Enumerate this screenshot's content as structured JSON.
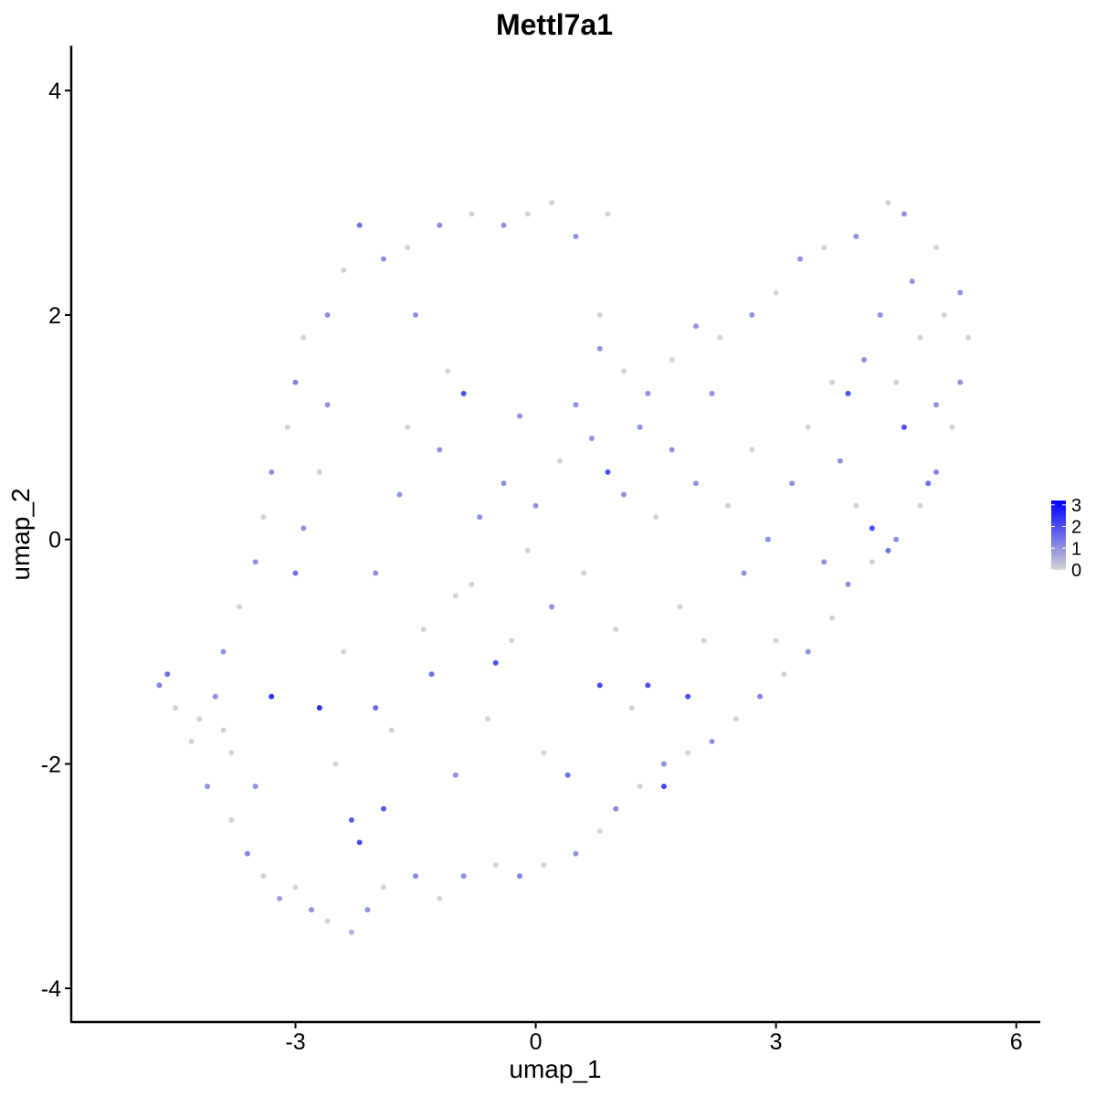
{
  "chart_data": {
    "type": "scatter",
    "title": "Mettl7a1",
    "xlabel": "umap_1",
    "ylabel": "umap_2",
    "xlim": [
      -5.8,
      6.3
    ],
    "ylim": [
      -4.3,
      4.4
    ],
    "x_ticks": [
      -3,
      0,
      3,
      6
    ],
    "y_ticks": [
      4,
      2,
      0,
      -2,
      -4
    ],
    "x_tick_labels": [
      "-3",
      "0",
      "3",
      "6"
    ],
    "y_tick_labels": [
      "4",
      "2",
      "0",
      "-2",
      "-4"
    ],
    "grid": false,
    "color_scale": {
      "low_color": "#d3d3d3",
      "high_color": "#0000ff",
      "min": 0,
      "max": 3.2,
      "breaks": [
        3,
        2,
        1,
        0
      ],
      "break_labels": [
        "3",
        "2",
        "1",
        "0"
      ],
      "legend_position": "right"
    },
    "cells": [
      [
        -4.7,
        -1.3,
        1.2
      ],
      [
        -4.6,
        -1.2,
        1.5
      ],
      [
        -4.5,
        -1.5,
        0
      ],
      [
        -4.3,
        -1.8,
        0
      ],
      [
        -4.0,
        -1.4,
        1.0
      ],
      [
        -3.9,
        -1.7,
        0
      ],
      [
        -4.1,
        -2.2,
        1.0
      ],
      [
        -3.8,
        -2.5,
        0
      ],
      [
        -3.6,
        -2.8,
        1.2
      ],
      [
        -3.4,
        -3.0,
        0
      ],
      [
        -3.2,
        -3.2,
        0.8
      ],
      [
        -3.0,
        -3.1,
        0
      ],
      [
        -2.8,
        -3.3,
        1.0
      ],
      [
        -2.6,
        -3.4,
        0
      ],
      [
        -2.3,
        -3.5,
        0.5
      ],
      [
        -2.1,
        -3.3,
        1.0
      ],
      [
        -1.9,
        -3.1,
        0
      ],
      [
        -1.5,
        -3.0,
        1.1
      ],
      [
        -1.2,
        -3.2,
        0
      ],
      [
        -0.9,
        -3.0,
        1.0
      ],
      [
        -0.5,
        -2.9,
        0
      ],
      [
        -0.2,
        -3.0,
        1.2
      ],
      [
        0.1,
        -2.9,
        0
      ],
      [
        0.5,
        -2.8,
        1.0
      ],
      [
        0.8,
        -2.6,
        0
      ],
      [
        1.0,
        -2.4,
        1.1
      ],
      [
        1.3,
        -2.2,
        0
      ],
      [
        1.6,
        -2.0,
        1.0
      ],
      [
        1.9,
        -1.9,
        0
      ],
      [
        2.2,
        -1.8,
        1.0
      ],
      [
        2.5,
        -1.6,
        0
      ],
      [
        2.8,
        -1.4,
        1.2
      ],
      [
        3.1,
        -1.2,
        0
      ],
      [
        3.4,
        -1.0,
        1.0
      ],
      [
        3.7,
        -0.7,
        0
      ],
      [
        3.9,
        -0.4,
        1.1
      ],
      [
        4.2,
        -0.2,
        0
      ],
      [
        4.5,
        0.0,
        1.0
      ],
      [
        4.8,
        0.3,
        0
      ],
      [
        5.0,
        0.6,
        1.2
      ],
      [
        5.2,
        1.0,
        0
      ],
      [
        5.3,
        1.4,
        1.0
      ],
      [
        5.4,
        1.8,
        0
      ],
      [
        5.3,
        2.2,
        1.0
      ],
      [
        5.0,
        2.6,
        0
      ],
      [
        4.6,
        2.9,
        1.0
      ],
      [
        4.4,
        3.0,
        0
      ],
      [
        4.0,
        2.7,
        1.0
      ],
      [
        3.6,
        2.6,
        0
      ],
      [
        3.3,
        2.5,
        1.0
      ],
      [
        3.0,
        2.2,
        0
      ],
      [
        2.7,
        2.0,
        1.0
      ],
      [
        2.3,
        1.8,
        0
      ],
      [
        2.0,
        1.9,
        1.0
      ],
      [
        1.7,
        1.6,
        0
      ],
      [
        1.4,
        1.3,
        1.0
      ],
      [
        1.1,
        1.5,
        0
      ],
      [
        0.8,
        1.7,
        1.0
      ],
      [
        0.8,
        2.0,
        0
      ],
      [
        0.9,
        2.9,
        0
      ],
      [
        0.5,
        2.7,
        1.0
      ],
      [
        0.2,
        3.0,
        0
      ],
      [
        -0.1,
        2.9,
        0
      ],
      [
        -0.4,
        2.8,
        1.0
      ],
      [
        -0.8,
        2.9,
        0
      ],
      [
        -1.2,
        2.8,
        1.1
      ],
      [
        -1.6,
        2.6,
        0
      ],
      [
        -1.9,
        2.5,
        1.0
      ],
      [
        -2.2,
        2.8,
        1.5
      ],
      [
        -2.4,
        2.4,
        0
      ],
      [
        -2.6,
        2.0,
        1.0
      ],
      [
        -2.9,
        1.8,
        0
      ],
      [
        -3.0,
        1.4,
        1.2
      ],
      [
        -3.1,
        1.0,
        0
      ],
      [
        -3.3,
        0.6,
        1.0
      ],
      [
        -3.4,
        0.2,
        0
      ],
      [
        -3.5,
        -0.2,
        1.0
      ],
      [
        -3.7,
        -0.6,
        0
      ],
      [
        -3.9,
        -1.0,
        1.0
      ],
      [
        -4.2,
        -1.6,
        0
      ],
      [
        -3.3,
        -1.4,
        2.4
      ],
      [
        -3.0,
        -0.3,
        1.5
      ],
      [
        -2.9,
        0.1,
        1.0
      ],
      [
        -2.7,
        0.6,
        0
      ],
      [
        -2.6,
        1.2,
        1.0
      ],
      [
        -2.4,
        -1.0,
        0
      ],
      [
        -2.3,
        -2.5,
        1.8
      ],
      [
        -2.2,
        -2.7,
        2.1
      ],
      [
        -2.0,
        -1.5,
        1.6
      ],
      [
        -1.9,
        -2.4,
        1.9
      ],
      [
        -1.8,
        -1.7,
        0
      ],
      [
        -1.7,
        0.4,
        1.0
      ],
      [
        -1.6,
        1.0,
        0
      ],
      [
        -1.5,
        2.0,
        1.0
      ],
      [
        -1.4,
        -0.8,
        0
      ],
      [
        -1.3,
        -1.2,
        1.5
      ],
      [
        -1.2,
        0.8,
        1.0
      ],
      [
        -1.1,
        1.5,
        0
      ],
      [
        -1.0,
        -2.1,
        1.0
      ],
      [
        -0.9,
        1.3,
        2.0
      ],
      [
        -0.8,
        -0.4,
        0
      ],
      [
        -0.7,
        0.2,
        1.0
      ],
      [
        -0.6,
        -1.6,
        0
      ],
      [
        -0.5,
        -1.1,
        2.0
      ],
      [
        -0.4,
        0.5,
        1.0
      ],
      [
        -0.3,
        -0.9,
        0
      ],
      [
        -0.2,
        1.1,
        1.0
      ],
      [
        -0.1,
        -0.1,
        0
      ],
      [
        0.0,
        0.3,
        1.0
      ],
      [
        0.1,
        -1.9,
        0
      ],
      [
        0.2,
        -0.6,
        1.0
      ],
      [
        0.3,
        0.7,
        0
      ],
      [
        0.4,
        -2.1,
        1.5
      ],
      [
        0.5,
        1.2,
        1.0
      ],
      [
        0.6,
        -0.3,
        0
      ],
      [
        0.7,
        0.9,
        1.0
      ],
      [
        0.8,
        -1.3,
        2.1
      ],
      [
        0.9,
        0.6,
        2.0
      ],
      [
        1.0,
        -0.8,
        0
      ],
      [
        1.1,
        0.4,
        1.0
      ],
      [
        1.2,
        -1.5,
        0
      ],
      [
        1.3,
        1.0,
        1.0
      ],
      [
        1.4,
        -1.3,
        2.0
      ],
      [
        1.5,
        0.2,
        0
      ],
      [
        1.6,
        -2.2,
        2.2
      ],
      [
        1.7,
        0.8,
        1.0
      ],
      [
        1.8,
        -0.6,
        0
      ],
      [
        1.9,
        -1.4,
        2.0
      ],
      [
        2.0,
        0.5,
        1.0
      ],
      [
        2.1,
        -0.9,
        0
      ],
      [
        2.2,
        1.3,
        1.0
      ],
      [
        2.4,
        0.3,
        0
      ],
      [
        2.6,
        -0.3,
        1.0
      ],
      [
        2.7,
        0.8,
        0
      ],
      [
        2.9,
        0.0,
        1.0
      ],
      [
        3.0,
        -0.9,
        0
      ],
      [
        3.2,
        0.5,
        1.0
      ],
      [
        3.4,
        1.0,
        0
      ],
      [
        3.6,
        -0.2,
        1.0
      ],
      [
        3.7,
        1.4,
        0
      ],
      [
        3.8,
        0.7,
        1.0
      ],
      [
        3.9,
        1.3,
        2.0
      ],
      [
        4.0,
        0.3,
        0
      ],
      [
        4.1,
        1.6,
        1.0
      ],
      [
        4.2,
        0.1,
        2.0
      ],
      [
        4.3,
        2.0,
        1.0
      ],
      [
        4.4,
        -0.1,
        1.5
      ],
      [
        4.5,
        1.4,
        0
      ],
      [
        4.6,
        1.0,
        2.0
      ],
      [
        4.7,
        2.3,
        1.0
      ],
      [
        4.8,
        1.8,
        0
      ],
      [
        4.9,
        0.5,
        1.5
      ],
      [
        5.0,
        1.2,
        1.0
      ],
      [
        5.1,
        2.0,
        0
      ],
      [
        -2.5,
        -2.0,
        0
      ],
      [
        -2.7,
        -1.5,
        2.5
      ],
      [
        -3.5,
        -2.2,
        1.0
      ],
      [
        -3.8,
        -1.9,
        0
      ],
      [
        -2.0,
        -0.3,
        1.0
      ],
      [
        -1.0,
        -0.5,
        0
      ]
    ]
  }
}
